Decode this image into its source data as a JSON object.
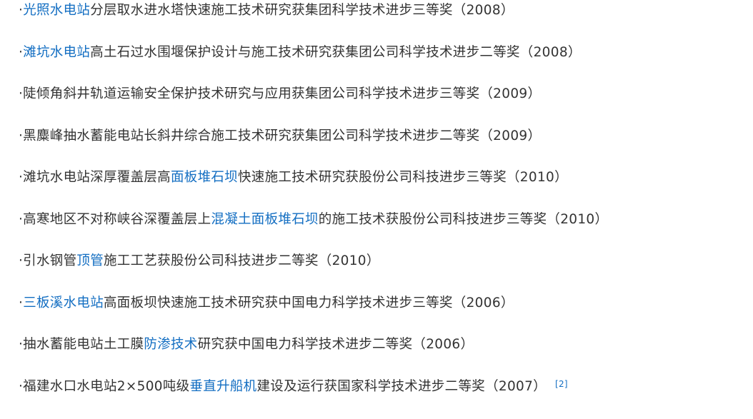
{
  "colors": {
    "text": "#333333",
    "link": "#136ec2"
  },
  "items": [
    {
      "segments": [
        {
          "t": "·"
        },
        {
          "t": "光照水电站",
          "link": true
        },
        {
          "t": "分层取水进水塔快速施工技术研究获集团科学技术进步三等奖（2008）"
        }
      ]
    },
    {
      "segments": [
        {
          "t": "·"
        },
        {
          "t": "滩坑水电站",
          "link": true
        },
        {
          "t": "高土石过水围堰保护设计与施工技术研究获集团公司科学技术进步二等奖（2008）"
        }
      ]
    },
    {
      "segments": [
        {
          "t": "·陡倾角斜井轨道运输安全保护技术研究与应用获集团公司科学技术进步三等奖（2009）"
        }
      ]
    },
    {
      "segments": [
        {
          "t": "·黑麋峰抽水蓄能电站长斜井综合施工技术研究获集团公司科学技术进步二等奖（2009）"
        }
      ]
    },
    {
      "segments": [
        {
          "t": "·滩坑水电站深厚覆盖层高"
        },
        {
          "t": "面板堆石坝",
          "link": true
        },
        {
          "t": "快速施工技术研究获股份公司科技进步三等奖（2010）"
        }
      ]
    },
    {
      "segments": [
        {
          "t": "·高寒地区不对称峡谷深覆盖层上"
        },
        {
          "t": "混凝土面板堆石坝",
          "link": true
        },
        {
          "t": "的施工技术获股份公司科技进步三等奖（2010）"
        }
      ]
    },
    {
      "segments": [
        {
          "t": "·引水钢管"
        },
        {
          "t": "顶管",
          "link": true
        },
        {
          "t": "施工工艺获股份公司科技进步二等奖（2010）"
        }
      ]
    },
    {
      "segments": [
        {
          "t": "·"
        },
        {
          "t": "三板溪水电站",
          "link": true
        },
        {
          "t": "高面板坝快速施工技术研究获中国电力科学技术进步三等奖（2006）"
        }
      ]
    },
    {
      "segments": [
        {
          "t": "·抽水蓄能电站土工膜"
        },
        {
          "t": "防渗技术",
          "link": true
        },
        {
          "t": "研究获中国电力科学技术进步二等奖（2006）"
        }
      ]
    },
    {
      "segments": [
        {
          "t": "·福建水口水电站2×500吨级"
        },
        {
          "t": "垂直升船机",
          "link": true
        },
        {
          "t": "建设及运行获国家科学技术进步二等奖（2007）"
        },
        {
          "t": "[2]",
          "ref": true
        }
      ]
    }
  ]
}
